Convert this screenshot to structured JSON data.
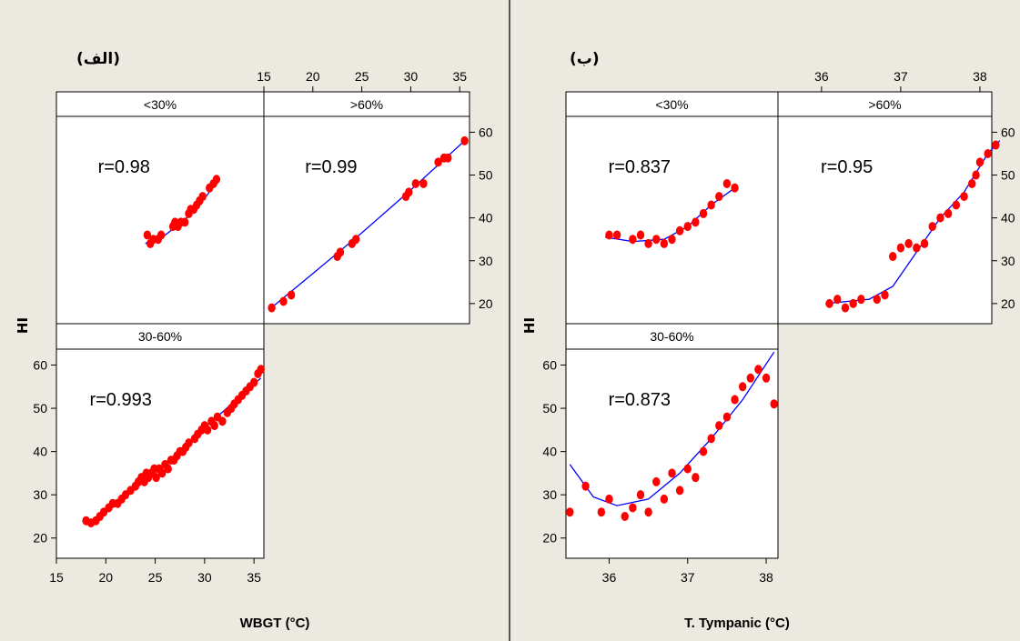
{
  "colors": {
    "background": "#ece9e0",
    "panel": "#ffffff",
    "strip": "#ffffff",
    "point": "#ff0000",
    "fit": "#0000ff",
    "divider": "#555555"
  },
  "chart_data": [
    {
      "type": "scatter",
      "title": "(الف)",
      "xlabel": "WBGT (°C)",
      "ylabel": "HI",
      "xlim": [
        15,
        36
      ],
      "ylim": [
        17,
        62
      ],
      "xticks": [
        15,
        20,
        25,
        30,
        35
      ],
      "yticks": [
        20,
        30,
        40,
        50,
        60
      ],
      "xtick_labels": [
        "15",
        "20",
        "25",
        "30",
        "35"
      ],
      "ytick_labels": [
        "20",
        "30",
        "40",
        "50",
        "60"
      ],
      "panels": [
        {
          "name": "<30%",
          "annotation": "r=0.98",
          "points": [
            [
              24.2,
              36
            ],
            [
              24.5,
              34
            ],
            [
              24.8,
              35
            ],
            [
              25.3,
              35
            ],
            [
              25.6,
              36
            ],
            [
              26.8,
              38
            ],
            [
              27.0,
              39
            ],
            [
              27.3,
              38
            ],
            [
              27.6,
              39
            ],
            [
              28.0,
              39
            ],
            [
              28.4,
              41
            ],
            [
              28.6,
              42
            ],
            [
              28.9,
              42
            ],
            [
              29.2,
              43
            ],
            [
              29.5,
              44
            ],
            [
              29.8,
              45
            ],
            [
              30.5,
              47
            ],
            [
              30.9,
              48
            ],
            [
              31.2,
              49
            ]
          ],
          "fit": [
            [
              24.0,
              34
            ],
            [
              26.0,
              36
            ],
            [
              28.0,
              39.5
            ],
            [
              30.0,
              44.5
            ],
            [
              31.4,
              49
            ]
          ]
        },
        {
          "name": ">60%",
          "annotation": "r=0.99",
          "points": [
            [
              15.8,
              19
            ],
            [
              17.0,
              20.5
            ],
            [
              17.8,
              22
            ],
            [
              22.5,
              31
            ],
            [
              22.8,
              32
            ],
            [
              24.0,
              34
            ],
            [
              24.4,
              35
            ],
            [
              29.5,
              45
            ],
            [
              29.8,
              46
            ],
            [
              30.5,
              48
            ],
            [
              31.3,
              48
            ],
            [
              32.8,
              53
            ],
            [
              33.4,
              54
            ],
            [
              33.8,
              54
            ],
            [
              35.5,
              58
            ]
          ],
          "fit": [
            [
              15.5,
              18.5
            ],
            [
              20,
              27
            ],
            [
              25,
              36.5
            ],
            [
              30,
              46.5
            ],
            [
              35.5,
              58
            ]
          ]
        },
        {
          "name": "30-60%",
          "annotation": "r=0.993",
          "points": [
            [
              18.0,
              24
            ],
            [
              18.5,
              23.5
            ],
            [
              19.0,
              24
            ],
            [
              19.4,
              25
            ],
            [
              19.8,
              26
            ],
            [
              20.3,
              27
            ],
            [
              20.7,
              28
            ],
            [
              21.2,
              28
            ],
            [
              21.6,
              29
            ],
            [
              22.0,
              30
            ],
            [
              22.5,
              31
            ],
            [
              23.0,
              32
            ],
            [
              23.3,
              33
            ],
            [
              23.6,
              34
            ],
            [
              23.9,
              33
            ],
            [
              24.1,
              35
            ],
            [
              24.3,
              34
            ],
            [
              24.6,
              35
            ],
            [
              24.9,
              36
            ],
            [
              25.1,
              34
            ],
            [
              25.4,
              36
            ],
            [
              25.7,
              35
            ],
            [
              26.0,
              37
            ],
            [
              26.3,
              36
            ],
            [
              26.6,
              38
            ],
            [
              26.9,
              38
            ],
            [
              27.2,
              39
            ],
            [
              27.5,
              40
            ],
            [
              27.8,
              40
            ],
            [
              28.1,
              41
            ],
            [
              28.4,
              42
            ],
            [
              29.0,
              43
            ],
            [
              29.3,
              44
            ],
            [
              29.7,
              45
            ],
            [
              30.0,
              46
            ],
            [
              30.3,
              45
            ],
            [
              30.7,
              47
            ],
            [
              31.0,
              46
            ],
            [
              31.3,
              48
            ],
            [
              31.8,
              47
            ],
            [
              32.3,
              49
            ],
            [
              32.7,
              50
            ],
            [
              33.0,
              51
            ],
            [
              33.4,
              52
            ],
            [
              33.8,
              53
            ],
            [
              34.2,
              54
            ],
            [
              34.6,
              55
            ],
            [
              35.0,
              56
            ],
            [
              35.4,
              58
            ],
            [
              35.7,
              59
            ]
          ],
          "fit": [
            [
              18,
              23
            ],
            [
              22,
              29.5
            ],
            [
              26,
              37
            ],
            [
              30,
              45.5
            ],
            [
              35.7,
              57
            ]
          ]
        }
      ]
    },
    {
      "type": "scatter",
      "title": "(ب)",
      "xlabel": "T. Tympanic (°C)",
      "ylabel": "HI",
      "xlim": [
        35.45,
        38.15
      ],
      "ylim": [
        17,
        62
      ],
      "xticks": [
        36,
        37,
        38
      ],
      "yticks": [
        20,
        30,
        40,
        50,
        60
      ],
      "xtick_labels": [
        "36",
        "37",
        "38"
      ],
      "ytick_labels": [
        "20",
        "30",
        "40",
        "50",
        "60"
      ],
      "panels": [
        {
          "name": "<30%",
          "annotation": "r=0.837",
          "points": [
            [
              36.0,
              36
            ],
            [
              36.1,
              36
            ],
            [
              36.3,
              35
            ],
            [
              36.4,
              36
            ],
            [
              36.5,
              34
            ],
            [
              36.6,
              35
            ],
            [
              36.7,
              34
            ],
            [
              36.8,
              35
            ],
            [
              36.9,
              37
            ],
            [
              37.0,
              38
            ],
            [
              37.1,
              39
            ],
            [
              37.2,
              41
            ],
            [
              37.3,
              43
            ],
            [
              37.4,
              45
            ],
            [
              37.5,
              48
            ],
            [
              37.6,
              47
            ]
          ],
          "fit": [
            [
              35.95,
              35.5
            ],
            [
              36.3,
              34.5
            ],
            [
              36.7,
              35
            ],
            [
              37.0,
              38
            ],
            [
              37.3,
              43
            ],
            [
              37.6,
              47
            ]
          ]
        },
        {
          "name": ">60%",
          "annotation": "r=0.95",
          "points": [
            [
              36.1,
              20
            ],
            [
              36.2,
              21
            ],
            [
              36.3,
              19
            ],
            [
              36.4,
              20
            ],
            [
              36.5,
              21
            ],
            [
              36.7,
              21
            ],
            [
              36.8,
              22
            ],
            [
              36.9,
              31
            ],
            [
              37.0,
              33
            ],
            [
              37.1,
              34
            ],
            [
              37.2,
              33
            ],
            [
              37.3,
              34
            ],
            [
              37.4,
              38
            ],
            [
              37.5,
              40
            ],
            [
              37.6,
              41
            ],
            [
              37.7,
              43
            ],
            [
              37.8,
              45
            ],
            [
              37.9,
              48
            ],
            [
              37.95,
              50
            ],
            [
              38.0,
              53
            ],
            [
              38.1,
              55
            ],
            [
              38.2,
              57
            ]
          ],
          "fit": [
            [
              36.05,
              20
            ],
            [
              36.6,
              21
            ],
            [
              36.9,
              24
            ],
            [
              37.2,
              32
            ],
            [
              37.5,
              40
            ],
            [
              37.8,
              46
            ],
            [
              38.1,
              55
            ],
            [
              38.25,
              58
            ]
          ]
        },
        {
          "name": "30-60%",
          "annotation": "r=0.873",
          "points": [
            [
              35.5,
              26
            ],
            [
              35.7,
              32
            ],
            [
              35.9,
              26
            ],
            [
              36.0,
              29
            ],
            [
              36.2,
              25
            ],
            [
              36.3,
              27
            ],
            [
              36.4,
              30
            ],
            [
              36.5,
              26
            ],
            [
              36.6,
              33
            ],
            [
              36.7,
              29
            ],
            [
              36.8,
              35
            ],
            [
              36.9,
              31
            ],
            [
              37.0,
              36
            ],
            [
              37.1,
              34
            ],
            [
              37.2,
              40
            ],
            [
              37.3,
              43
            ],
            [
              37.4,
              46
            ],
            [
              37.5,
              48
            ],
            [
              37.6,
              52
            ],
            [
              37.7,
              55
            ],
            [
              37.8,
              57
            ],
            [
              37.9,
              59
            ],
            [
              38.0,
              57
            ],
            [
              38.1,
              51
            ]
          ],
          "fit": [
            [
              35.5,
              37
            ],
            [
              35.8,
              29.5
            ],
            [
              36.1,
              27.5
            ],
            [
              36.5,
              29
            ],
            [
              36.9,
              35
            ],
            [
              37.3,
              43
            ],
            [
              37.7,
              52
            ],
            [
              38.1,
              63
            ]
          ]
        }
      ]
    }
  ]
}
